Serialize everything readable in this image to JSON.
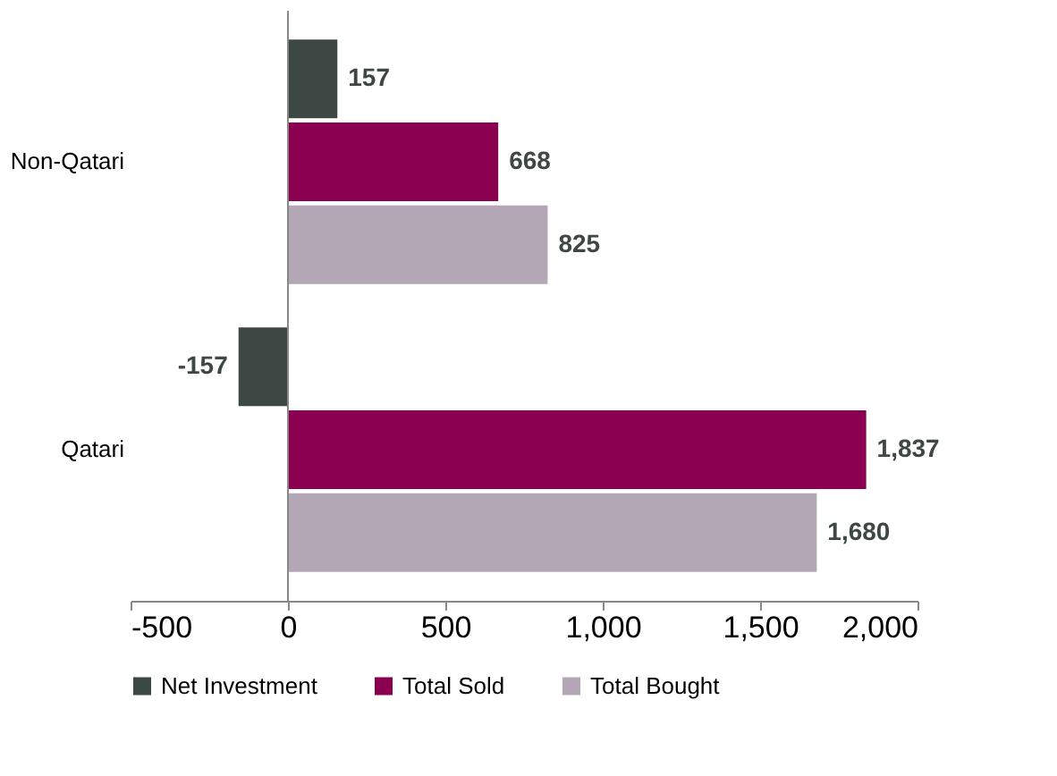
{
  "chart_data": {
    "type": "bar",
    "orientation": "horizontal",
    "categories": [
      "Non-Qatari",
      "Qatari"
    ],
    "series": [
      {
        "name": "Net Investment",
        "color": "#3d4743",
        "values": [
          157,
          -157
        ]
      },
      {
        "name": "Total Sold",
        "color": "#8c0052",
        "values": [
          668,
          1837
        ]
      },
      {
        "name": "Total Bought",
        "color": "#b3a7b5",
        "values": [
          825,
          1680
        ]
      }
    ],
    "xlim": [
      -500,
      2000
    ],
    "xticks": [
      -500,
      0,
      500,
      {
        "value": 1000,
        "label": "1,000"
      },
      {
        "value": 1500,
        "label": "1,500"
      },
      {
        "value": 2000,
        "label": "2,000"
      }
    ],
    "value_labels": [
      [
        "157",
        "-157"
      ],
      [
        "668",
        "1,837"
      ],
      [
        "825",
        "1,680"
      ]
    ],
    "legend": "bottom"
  }
}
